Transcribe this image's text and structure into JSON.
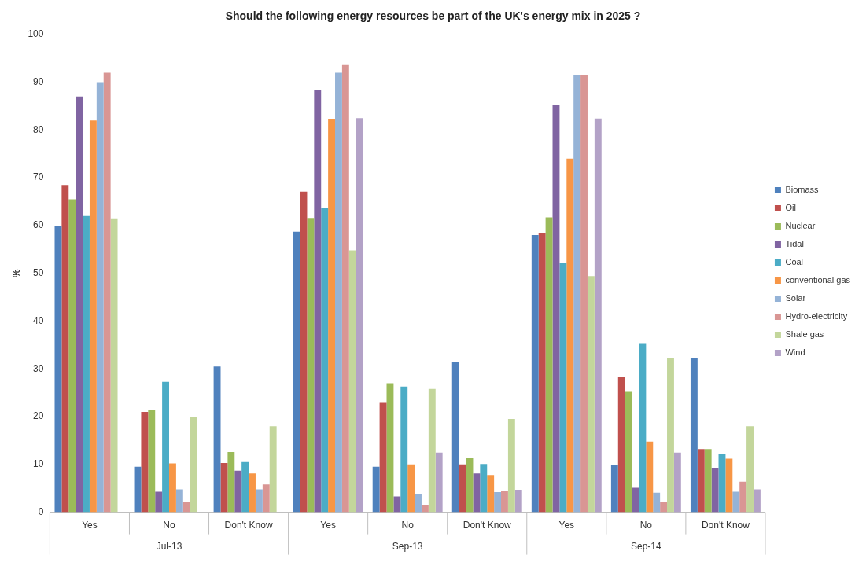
{
  "chart_data": {
    "type": "bar",
    "title": "Should the following energy resources be part of the UK's energy mix in 2025 ?",
    "ylabel": "%",
    "categories": [
      "Yes",
      "No",
      "Don't Know",
      "Yes",
      "No",
      "Don't Know",
      "Yes",
      "No",
      "Don't Know"
    ],
    "annotations": [
      "Jul-13",
      "Sep-13",
      "Sep-14"
    ],
    "series": [
      {
        "name": "Biomass",
        "color": "#4f81bd",
        "values": [
          60,
          9.5,
          30.5,
          58.7,
          9.5,
          31.5,
          58,
          9.8,
          32.3
        ]
      },
      {
        "name": "Oil",
        "color": "#c0504d",
        "values": [
          68.5,
          21,
          10.3,
          67.1,
          22.9,
          10,
          58.4,
          28.3,
          13.2
        ]
      },
      {
        "name": "Nuclear",
        "color": "#9bbb59",
        "values": [
          65.5,
          21.5,
          12.6,
          61.6,
          27,
          11.4,
          61.7,
          25.2,
          13.2
        ]
      },
      {
        "name": "Tidal",
        "color": "#8064a2",
        "values": [
          87,
          4.3,
          8.7,
          88.4,
          3.3,
          8.1,
          85.3,
          5.1,
          9.3
        ]
      },
      {
        "name": "Coal",
        "color": "#4bacc6",
        "values": [
          62,
          27.3,
          10.5,
          63.6,
          26.3,
          10.1,
          52.2,
          35.4,
          12.2
        ]
      },
      {
        "name": "conventional gas",
        "color": "#f79646",
        "values": [
          82,
          10.2,
          8.1,
          82.2,
          10,
          7.8,
          74,
          14.8,
          11.2
        ]
      },
      {
        "name": "Solar",
        "color": "#95b3d7",
        "values": [
          90,
          4.8,
          4.8,
          92,
          3.7,
          4.2,
          91.4,
          4.1,
          4.3
        ]
      },
      {
        "name": "Hydro-electricity",
        "color": "#d99694",
        "values": [
          92,
          2.2,
          5.8,
          93.6,
          1.6,
          4.5,
          91.4,
          2.2,
          6.4
        ]
      },
      {
        "name": "Shale gas",
        "color": "#c3d69b",
        "values": [
          61.5,
          20,
          18,
          54.8,
          25.8,
          19.5,
          49.4,
          32.3,
          18
        ]
      },
      {
        "name": "Wind",
        "color": "#b3a2c7",
        "values": [
          null,
          null,
          null,
          82.5,
          12.5,
          4.7,
          82.4,
          12.5,
          4.8
        ]
      }
    ],
    "ylim": [
      0,
      100
    ],
    "yticks": [
      0,
      10,
      20,
      30,
      40,
      50,
      60,
      70,
      80,
      90,
      100
    ],
    "grid": false,
    "legend": "right"
  }
}
